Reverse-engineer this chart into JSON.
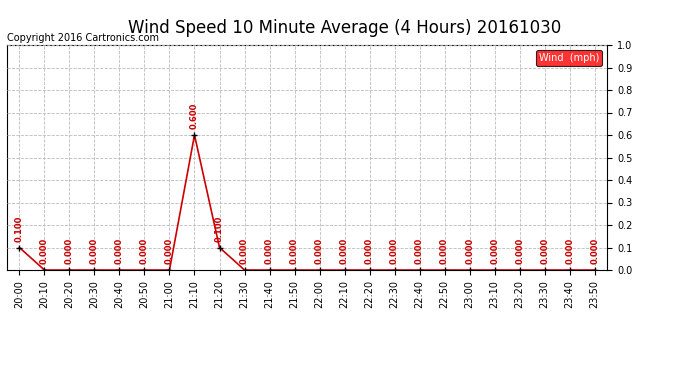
{
  "title": "Wind Speed 10 Minute Average (4 Hours) 20161030",
  "copyright": "Copyright 2016 Cartronics.com",
  "legend_label": "Wind  (mph)",
  "legend_bg": "#ff0000",
  "legend_text_color": "#ffffff",
  "line_color": "#cc0000",
  "marker_color": "#000000",
  "label_color": "#cc0000",
  "ylim": [
    0.0,
    1.0
  ],
  "yticks": [
    0.0,
    0.1,
    0.2,
    0.3,
    0.4,
    0.5,
    0.6,
    0.7,
    0.8,
    0.9,
    1.0
  ],
  "x_labels": [
    "20:00",
    "20:10",
    "20:20",
    "20:30",
    "20:40",
    "20:50",
    "21:00",
    "21:10",
    "21:20",
    "21:30",
    "21:40",
    "21:50",
    "22:00",
    "22:10",
    "22:20",
    "22:30",
    "22:40",
    "22:50",
    "23:00",
    "23:10",
    "23:20",
    "23:30",
    "23:40",
    "23:50"
  ],
  "values": [
    0.1,
    0.0,
    0.0,
    0.0,
    0.0,
    0.0,
    0.0,
    0.6,
    0.1,
    0.0,
    0.0,
    0.0,
    0.0,
    0.0,
    0.0,
    0.0,
    0.0,
    0.0,
    0.0,
    0.0,
    0.0,
    0.0,
    0.0,
    0.0
  ],
  "bg_color": "#ffffff",
  "grid_color": "#bbbbbb",
  "title_fontsize": 12,
  "copyright_fontsize": 7,
  "tick_label_fontsize": 7,
  "data_label_fontsize": 6,
  "label_rotation": 90
}
